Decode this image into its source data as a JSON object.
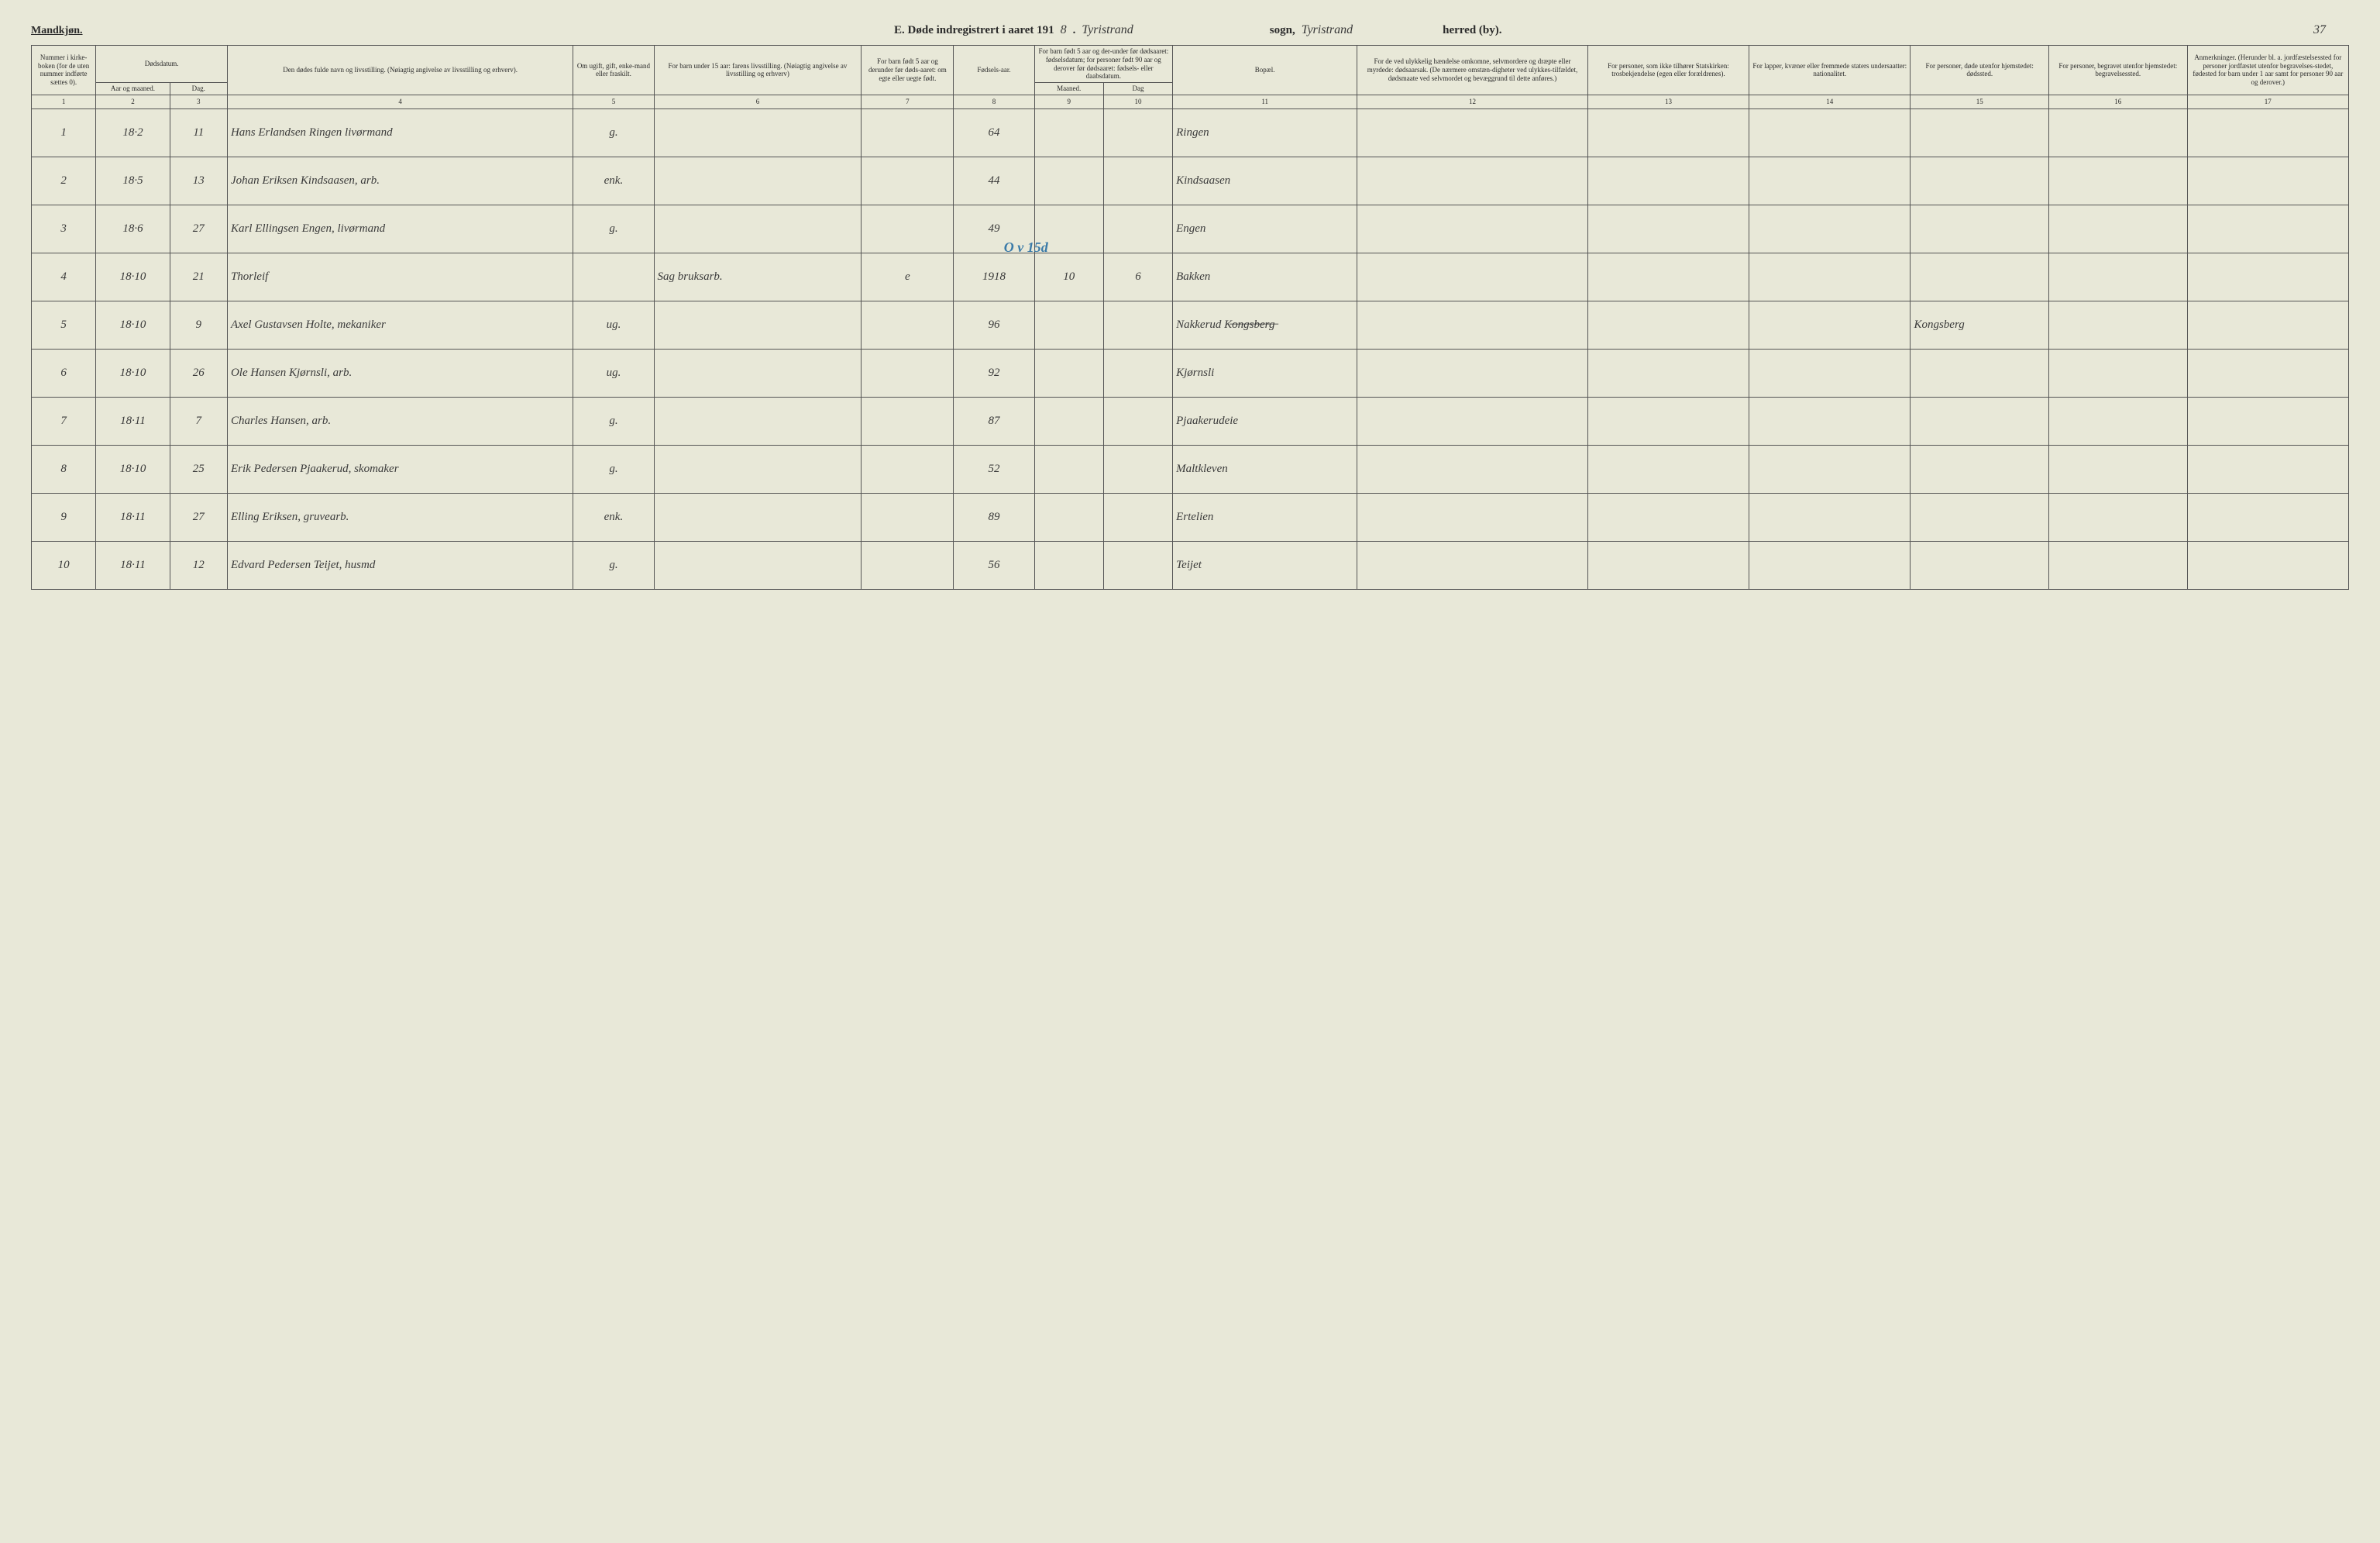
{
  "header": {
    "gender": "Mandkjøn.",
    "title_prefix": "E.   Døde indregistrert i aaret 191",
    "year_suffix": "8",
    "period": ".",
    "sogn_hand": "Tyristrand",
    "sogn_label": "sogn,",
    "herred_hand": "Tyristrand",
    "herred_label": "herred (by).",
    "page_number": "37"
  },
  "columns": {
    "c1": "Nummer i kirke-boken (for de uten nummer indførte sættes 0).",
    "c2_top": "Dødsdatum.",
    "c2": "Aar og maaned.",
    "c3": "Dag.",
    "c4": "Den dødes fulde navn og livsstilling. (Nøiagtig angivelse av livsstilling og erhverv).",
    "c5": "Om ugift, gift, enke-mand eller fraskilt.",
    "c6": "For barn under 15 aar: farens livsstilling. (Nøiagtig angivelse av livsstilling og erhverv)",
    "c7": "For barn født 5 aar og derunder før døds-aaret: om egte eller uegte født.",
    "c8": "Fødsels-aar.",
    "c9_10_top": "For barn født 5 aar og der-under før dødsaaret: fødselsdatum; for personer født 90 aar og derover før dødsaaret: fødsels- eller daabsdatum.",
    "c9": "Maaned.",
    "c10": "Dag",
    "c11": "Bopæl.",
    "c12": "For de ved ulykkelig hændelse omkomne, selvmordere og dræpte eller myrdede: dødsaarsak. (De nærmere omstæn-digheter ved ulykkes-tilfældet, dødsmaate ved selvmordet og bevæggrund til dette anføres.)",
    "c13": "For personer, som ikke tilhører Statskirken: trosbekjendelse (egen eller forældrenes).",
    "c14": "For lapper, kvæner eller fremmede staters undersaatter: nationalitet.",
    "c15": "For personer, døde utenfor hjemstedet: dødssted.",
    "c16": "For personer, begravet utenfor hjemstedet: begravelsessted.",
    "c17": "Anmerkninger. (Herunder bl. a. jordfæstelsessted for personer jordfæstet utenfor begravelses-stedet, fødested for barn under 1 aar samt for personer 90 aar og derover.)"
  },
  "colnums": [
    "1",
    "2",
    "3",
    "4",
    "5",
    "6",
    "7",
    "8",
    "9",
    "10",
    "11",
    "12",
    "13",
    "14",
    "15",
    "16",
    "17"
  ],
  "rows": [
    {
      "n": "1",
      "ym": "18·2",
      "d": "11",
      "name": "Hans Erlandsen Ringen livørmand",
      "stat": "g.",
      "c6": "",
      "c7": "",
      "yr": "64",
      "m": "",
      "dg": "",
      "bopel": "Ringen",
      "c12": "",
      "c13": "",
      "c14": "",
      "c15": "",
      "c16": "",
      "c17": ""
    },
    {
      "n": "2",
      "ym": "18·5",
      "d": "13",
      "name": "Johan Eriksen Kindsaasen, arb.",
      "stat": "enk.",
      "c6": "",
      "c7": "",
      "yr": "44",
      "m": "",
      "dg": "",
      "bopel": "Kindsaasen",
      "c12": "",
      "c13": "",
      "c14": "",
      "c15": "",
      "c16": "",
      "c17": ""
    },
    {
      "n": "3",
      "ym": "18·6",
      "d": "27",
      "name": "Karl Ellingsen Engen, livørmand",
      "stat": "g.",
      "c6": "",
      "c7": "",
      "yr": "49",
      "m": "",
      "dg": "",
      "bopel": "Engen",
      "c12": "",
      "c13": "",
      "c14": "",
      "c15": "",
      "c16": "",
      "c17": ""
    },
    {
      "n": "4",
      "ym": "18·10",
      "d": "21",
      "name": "Thorleif",
      "stat": "",
      "c6": "Sag bruksarb.",
      "c7": "e",
      "yr": "1918",
      "m": "10",
      "dg": "6",
      "bopel": "Bakken",
      "c12": "",
      "c13": "",
      "c14": "",
      "c15": "",
      "c16": "",
      "c17": ""
    },
    {
      "n": "5",
      "ym": "18·10",
      "d": "9",
      "name": "Axel Gustavsen Holte, mekaniker",
      "stat": "ug.",
      "c6": "",
      "c7": "",
      "yr": "96",
      "m": "",
      "dg": "",
      "bopel": "Nakkerud K̶o̶n̶g̶s̶b̶e̶r̶g̶",
      "c12": "",
      "c13": "",
      "c14": "",
      "c15": "Kongsberg",
      "c16": "",
      "c17": ""
    },
    {
      "n": "6",
      "ym": "18·10",
      "d": "26",
      "name": "Ole Hansen Kjørnsli, arb.",
      "stat": "ug.",
      "c6": "",
      "c7": "",
      "yr": "92",
      "m": "",
      "dg": "",
      "bopel": "Kjørnsli",
      "c12": "",
      "c13": "",
      "c14": "",
      "c15": "",
      "c16": "",
      "c17": ""
    },
    {
      "n": "7",
      "ym": "18·11",
      "d": "7",
      "name": "Charles Hansen, arb.",
      "stat": "g.",
      "c6": "",
      "c7": "",
      "yr": "87",
      "m": "",
      "dg": "",
      "bopel": "Pjaakerudeie",
      "c12": "",
      "c13": "",
      "c14": "",
      "c15": "",
      "c16": "",
      "c17": ""
    },
    {
      "n": "8",
      "ym": "18·10",
      "d": "25",
      "name": "Erik Pedersen Pjaakerud, skomaker",
      "stat": "g.",
      "c6": "",
      "c7": "",
      "yr": "52",
      "m": "",
      "dg": "",
      "bopel": "Maltkleven",
      "c12": "",
      "c13": "",
      "c14": "",
      "c15": "",
      "c16": "",
      "c17": ""
    },
    {
      "n": "9",
      "ym": "18·11",
      "d": "27",
      "name": "Elling Eriksen, gruvearb.",
      "stat": "enk.",
      "c6": "",
      "c7": "",
      "yr": "89",
      "m": "",
      "dg": "",
      "bopel": "Ertelien",
      "c12": "",
      "c13": "",
      "c14": "",
      "c15": "",
      "c16": "",
      "c17": ""
    },
    {
      "n": "10",
      "ym": "18·11",
      "d": "12",
      "name": "Edvard Pedersen Teijet, husmd",
      "stat": "g.",
      "c6": "",
      "c7": "",
      "yr": "56",
      "m": "",
      "dg": "",
      "bopel": "Teijet",
      "c12": "",
      "c13": "",
      "c14": "",
      "c15": "",
      "c16": "",
      "c17": ""
    }
  ],
  "annotation_row4": "O v 15d",
  "style": {
    "bg": "#e8e8d8",
    "border": "#555",
    "text": "#2a2a2a",
    "hand": "#3a3a3a",
    "blue": "#3a7aa8"
  }
}
